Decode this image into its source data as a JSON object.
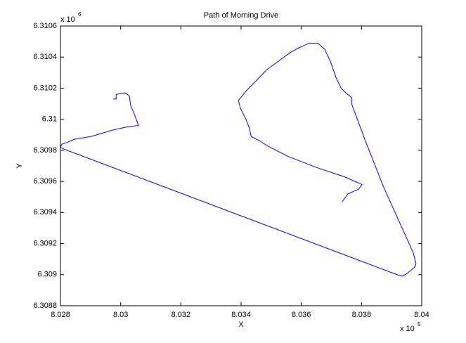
{
  "chart_data": {
    "type": "line",
    "title": "Path of Morning Drive",
    "xlabel": "X",
    "ylabel": "Y",
    "x_multiplier": "x 10",
    "x_exponent": "5",
    "y_multiplier": "x 10",
    "y_exponent": "6",
    "xlim": [
      8.028,
      8.04
    ],
    "xticks": [
      8.028,
      8.03,
      8.032,
      8.034,
      8.036,
      8.038,
      8.04
    ],
    "ylim": [
      6.3088,
      6.3106
    ],
    "yticks": [
      6.3088,
      6.309,
      6.3092,
      6.3094,
      6.3096,
      6.3098,
      6.31,
      6.3102,
      6.3104,
      6.3106
    ],
    "grid": false,
    "series": [
      {
        "color": "#0000ff",
        "x": [
          8.02975,
          8.02985,
          8.02985,
          8.03015,
          8.03029,
          8.03033,
          8.03048,
          8.03059,
          8.03019,
          8.02973,
          8.02903,
          8.02844,
          8.02821,
          8.02805,
          8.028,
          8.02809,
          8.03918,
          8.03935,
          8.03953,
          8.03977,
          8.03981,
          8.03972,
          8.03872,
          8.03813,
          8.03767,
          8.03767,
          8.03748,
          8.03732,
          8.03715,
          8.03697,
          8.03678,
          8.03655,
          8.03627,
          8.03592,
          8.03564,
          8.03486,
          8.03416,
          8.03391,
          8.03398,
          8.03416,
          8.03428,
          8.03433,
          8.03463,
          8.03486,
          8.03557,
          8.0365,
          8.03743,
          8.03802,
          8.0379,
          8.03755,
          8.03736
        ],
        "values": [
          6.31013,
          6.31013,
          6.31016,
          6.31017,
          6.31015,
          6.31009,
          6.31002,
          6.30996,
          6.30995,
          6.30993,
          6.30989,
          6.30987,
          6.30985,
          6.30984,
          6.30982,
          6.30981,
          6.309,
          6.30899,
          6.30901,
          6.30905,
          6.30907,
          6.30914,
          6.30957,
          6.30986,
          6.3101,
          6.31014,
          6.31017,
          6.3102,
          6.31027,
          6.31037,
          6.31045,
          6.31049,
          6.31049,
          6.31046,
          6.31043,
          6.31032,
          6.31018,
          6.31012,
          6.31007,
          6.31,
          6.30994,
          6.30989,
          6.30986,
          6.30983,
          6.30976,
          6.30969,
          6.30963,
          6.30958,
          6.30955,
          6.30952,
          6.30947
        ]
      }
    ]
  }
}
